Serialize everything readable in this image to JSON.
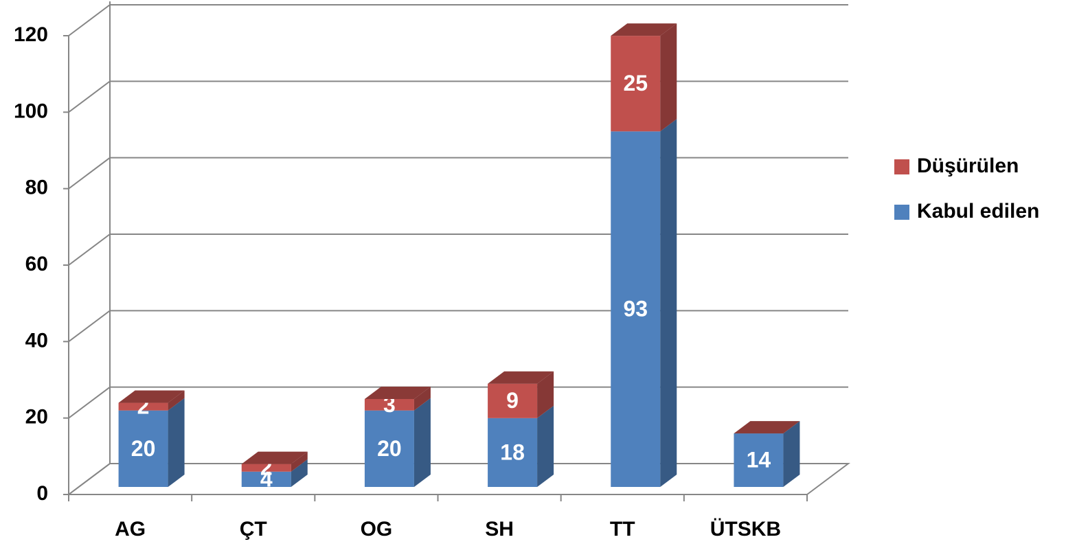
{
  "chart_data": {
    "type": "bar3d_stacked",
    "categories": [
      "AG",
      "ÇT",
      "OG",
      "SH",
      "TT",
      "ÜTSKB"
    ],
    "series": [
      {
        "name": "Kabul edilen",
        "color": "#4f81bd",
        "values": [
          20,
          4,
          20,
          18,
          93,
          14
        ]
      },
      {
        "name": "Düşürülen",
        "color": "#c0504d",
        "values": [
          2,
          2,
          3,
          9,
          25,
          null
        ]
      }
    ],
    "ylim": [
      0,
      120
    ],
    "yticks": [
      0,
      20,
      40,
      60,
      80,
      100,
      120
    ],
    "grid": true,
    "legend": "right"
  }
}
